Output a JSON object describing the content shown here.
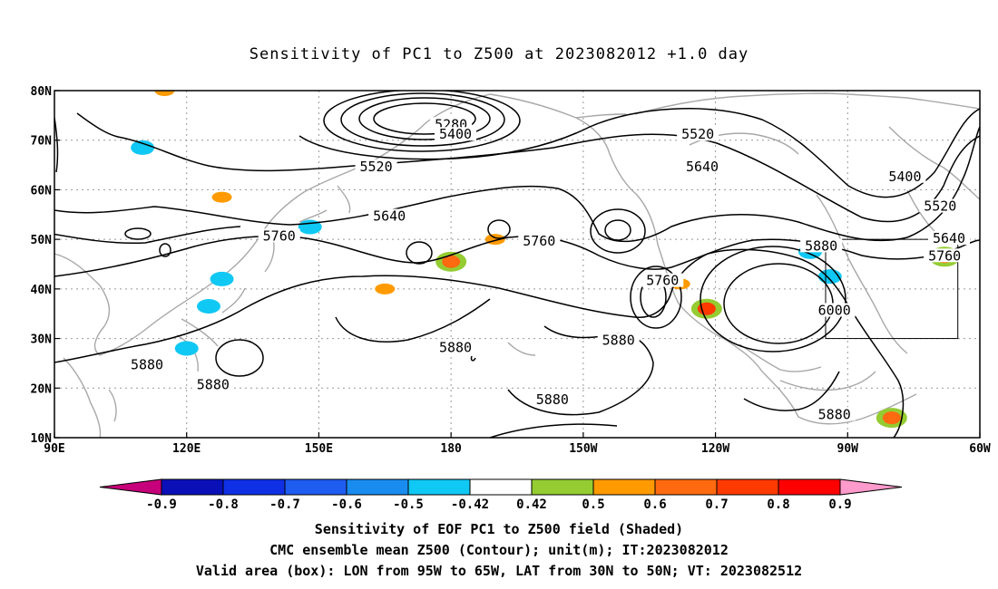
{
  "title": "Sensitivity of PC1 to Z500 at 2023082012 +1.0 day",
  "chart_data": {
    "type": "contour-map",
    "title": "Sensitivity of PC1 to Z500 at 2023082012 +1.0 day",
    "lon_range": [
      90,
      300
    ],
    "lat_range": [
      10,
      80
    ],
    "x_ticks": [
      {
        "lon": 90,
        "label": "90E"
      },
      {
        "lon": 120,
        "label": "120E"
      },
      {
        "lon": 150,
        "label": "150E"
      },
      {
        "lon": 180,
        "label": "180"
      },
      {
        "lon": 210,
        "label": "150W"
      },
      {
        "lon": 240,
        "label": "120W"
      },
      {
        "lon": 270,
        "label": "90W"
      },
      {
        "lon": 300,
        "label": "60W"
      }
    ],
    "y_ticks": [
      {
        "lat": 80,
        "label": "80N"
      },
      {
        "lat": 70,
        "label": "70N"
      },
      {
        "lat": 60,
        "label": "60N"
      },
      {
        "lat": 50,
        "label": "50N"
      },
      {
        "lat": 40,
        "label": "40N"
      },
      {
        "lat": 30,
        "label": "30N"
      },
      {
        "lat": 20,
        "label": "20N"
      },
      {
        "lat": 10,
        "label": "10N"
      }
    ],
    "grid": true,
    "contour_unit": "m",
    "contour_labels": [
      {
        "value": "5280",
        "lon": 180,
        "lat": 73
      },
      {
        "value": "5400",
        "lon": 181,
        "lat": 71
      },
      {
        "value": "5400",
        "lon": 283,
        "lat": 62.5
      },
      {
        "value": "5520",
        "lon": 163,
        "lat": 64.5
      },
      {
        "value": "5520",
        "lon": 236,
        "lat": 71
      },
      {
        "value": "5520",
        "lon": 291,
        "lat": 56.5
      },
      {
        "value": "5640",
        "lon": 166,
        "lat": 54.5
      },
      {
        "value": "5640",
        "lon": 237,
        "lat": 64.5
      },
      {
        "value": "5640",
        "lon": 293,
        "lat": 50
      },
      {
        "value": "5760",
        "lon": 141,
        "lat": 50.5
      },
      {
        "value": "5760",
        "lon": 200,
        "lat": 49.5
      },
      {
        "value": "5760",
        "lon": 228,
        "lat": 41.5
      },
      {
        "value": "5760",
        "lon": 292,
        "lat": 46.5
      },
      {
        "value": "5880",
        "lon": 111,
        "lat": 24.5
      },
      {
        "value": "5880",
        "lon": 126,
        "lat": 20.5
      },
      {
        "value": "5880",
        "lon": 181,
        "lat": 28
      },
      {
        "value": "5880",
        "lon": 218,
        "lat": 29.5
      },
      {
        "value": "5880",
        "lon": 203,
        "lat": 17.5
      },
      {
        "value": "5880",
        "lon": 264,
        "lat": 48.5
      },
      {
        "value": "5880",
        "lon": 267,
        "lat": 14.5
      },
      {
        "value": "6000",
        "lon": 267,
        "lat": 35.5
      }
    ],
    "sensitivity_patches": [
      {
        "lon": 110,
        "lat": 68.5,
        "value": -0.5
      },
      {
        "lon": 148,
        "lat": 52.5,
        "value": -0.5
      },
      {
        "lon": 125,
        "lat": 36.5,
        "value": -0.5
      },
      {
        "lon": 128,
        "lat": 42,
        "value": -0.5
      },
      {
        "lon": 120,
        "lat": 28,
        "value": -0.5
      },
      {
        "lon": 261.5,
        "lat": 47.5,
        "value": -0.5
      },
      {
        "lon": 266,
        "lat": 42.5,
        "value": -0.5
      },
      {
        "lon": 180,
        "lat": 45.5,
        "value": 0.6
      },
      {
        "lon": 232,
        "lat": 41,
        "value": 0.5
      },
      {
        "lon": 238,
        "lat": 36,
        "value": 0.7
      },
      {
        "lon": 165,
        "lat": 40,
        "value": 0.5
      },
      {
        "lon": 280,
        "lat": 14,
        "value": 0.6
      },
      {
        "lon": 292,
        "lat": 46.5,
        "value": 0.6
      },
      {
        "lon": 115,
        "lat": 80,
        "value": 0.5
      },
      {
        "lon": 128,
        "lat": 58.5,
        "value": 0.5
      },
      {
        "lon": 190,
        "lat": 50,
        "value": 0.5
      }
    ],
    "valid_box": {
      "lon": [
        265,
        295
      ],
      "lat": [
        30,
        50
      ]
    }
  },
  "colorbar": {
    "labels": [
      "-0.9",
      "-0.8",
      "-0.7",
      "-0.6",
      "-0.5",
      "-0.42",
      "0.42",
      "0.5",
      "0.6",
      "0.7",
      "0.8",
      "0.9"
    ],
    "colors": [
      "#c6007a",
      "#0a10b8",
      "#1030e6",
      "#1f5cf0",
      "#1a8cf0",
      "#10c8f4",
      "#ffffff",
      "#94cc32",
      "#ff9a00",
      "#ff6a10",
      "#ff3a00",
      "#ff0000",
      "#ff9acc"
    ]
  },
  "captions": {
    "line1": "Sensitivity of EOF PC1 to Z500 field (Shaded)",
    "line2": "CMC ensemble mean Z500 (Contour); unit(m); IT:2023082012",
    "line3": "Valid area (box): LON from 95W to 65W, LAT from 30N to 50N; VT: 2023082512"
  }
}
